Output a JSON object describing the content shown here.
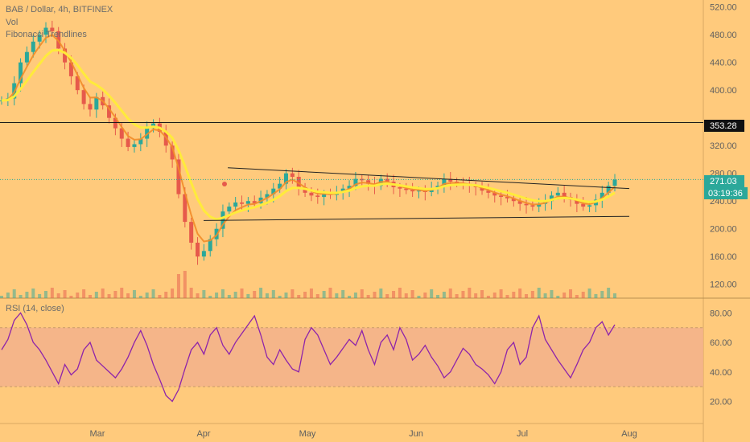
{
  "legend": {
    "symbol_line": "BAB / Dollar, 4h, BITFINEX",
    "vol": "Vol",
    "fib": "Fibonacci Trendlines",
    "rsi": "RSI (14, close)"
  },
  "badges": {
    "level": "353.28",
    "last_price": "271.03",
    "countdown": "03:19:36"
  },
  "colors": {
    "background": "#FFCA7C",
    "ma_yellow": "#FFEB3B",
    "ma_orange": "#F28C28",
    "rsi_line": "#8E24AA",
    "rsi_band": "#F3AF8C",
    "candle_up": "#2BA89A",
    "candle_down": "#E65A4B"
  },
  "chart_data": [
    {
      "type": "line",
      "panel": "price",
      "y_ticks": [
        120,
        160,
        200,
        240,
        280,
        320,
        353.28,
        400,
        440,
        480,
        520
      ],
      "ylim": [
        100,
        530
      ],
      "x_ticks": [
        "Mar",
        "Apr",
        "May",
        "Jun",
        "Jul",
        "Aug"
      ],
      "horizontal_level": 353.28,
      "last_price": 271.03,
      "series": [
        {
          "values": [
            385,
            388,
            410,
            440,
            455,
            470,
            480,
            490,
            485,
            460,
            440,
            420,
            400,
            380,
            372,
            390,
            378,
            360,
            345,
            330,
            318,
            322,
            330,
            345,
            352,
            340,
            320,
            300,
            250,
            210,
            180,
            160,
            168,
            185,
            200,
            225,
            232,
            238,
            236,
            240,
            237,
            245,
            250,
            258,
            265,
            280,
            275,
            260,
            252,
            248,
            246,
            250,
            249,
            252,
            258,
            262,
            272,
            270,
            265,
            262,
            272,
            268,
            260,
            258,
            256,
            254,
            255,
            253,
            258,
            262,
            272,
            268,
            266,
            265,
            262,
            260,
            255,
            252,
            248,
            246,
            244,
            240,
            236,
            234,
            232,
            236,
            240,
            248,
            252,
            246,
            242,
            236,
            232,
            234,
            242,
            252,
            262,
            271
          ]
        }
      ],
      "trendlines": [
        {
          "from": [
            "Apr 8",
            288
          ],
          "to": [
            "Jul 31",
            258
          ]
        },
        {
          "from": [
            "Apr 1",
            212
          ],
          "to": [
            "Jul 31",
            218
          ]
        }
      ]
    },
    {
      "type": "line",
      "panel": "rsi",
      "y_ticks": [
        20,
        40,
        60,
        80
      ],
      "ylim": [
        5,
        90
      ],
      "band": [
        30,
        70
      ],
      "series": [
        {
          "values": [
            55,
            62,
            75,
            80,
            72,
            60,
            55,
            48,
            40,
            32,
            45,
            38,
            42,
            55,
            60,
            48,
            44,
            40,
            36,
            42,
            50,
            60,
            68,
            58,
            45,
            35,
            24,
            20,
            28,
            42,
            55,
            60,
            52,
            65,
            70,
            58,
            52,
            60,
            66,
            72,
            78,
            65,
            50,
            45,
            55,
            48,
            42,
            40,
            62,
            70,
            65,
            55,
            45,
            50,
            56,
            62,
            58,
            68,
            55,
            45,
            60,
            65,
            55,
            70,
            62,
            48,
            52,
            58,
            50,
            44,
            36,
            40,
            48,
            56,
            52,
            45,
            42,
            38,
            32,
            40,
            55,
            60,
            45,
            50,
            70,
            78,
            62,
            55,
            48,
            42,
            36,
            45,
            55,
            60,
            70,
            74,
            65,
            72
          ]
        }
      ]
    }
  ]
}
